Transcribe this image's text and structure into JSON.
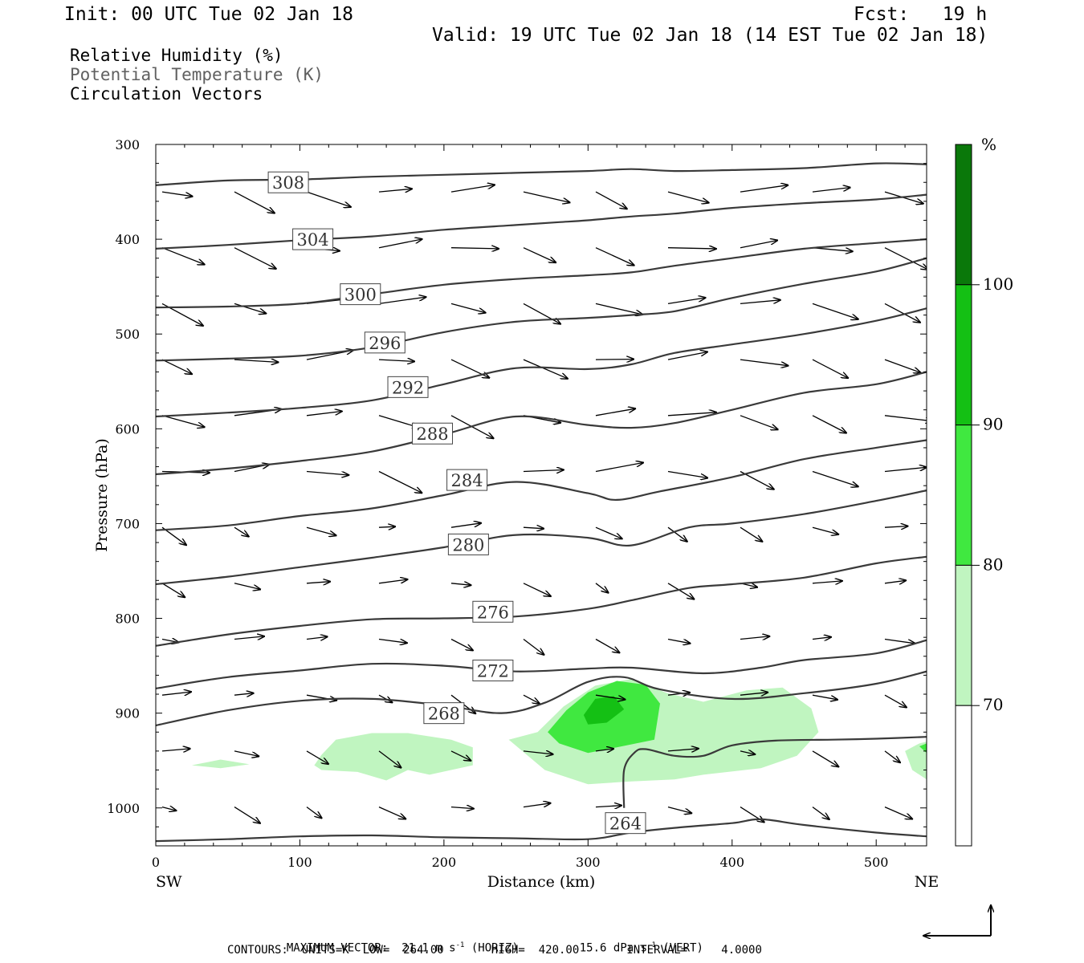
{
  "header": {
    "init": "Init: 00 UTC Tue 02 Jan 18",
    "fcst": "Fcst:   19 h",
    "valid": "Valid: 19 UTC Tue 02 Jan 18 (14 EST Tue 02 Jan 18)"
  },
  "fields": {
    "rh": "Relative Humidity (%)",
    "theta": "Potential Temperature (K)",
    "vectors": "Circulation Vectors"
  },
  "footer": {
    "max_vector_label": "MAXIMUM VECTOR:",
    "max_vector_horiz": "21.1 m s",
    "horiz_tag": "(HORIZ)",
    "max_vector_vert": "15.6 dPa s",
    "vert_tag": "(VERT)",
    "exp": "-1",
    "contours": "CONTOURS:  UNITS=K  LOW=  264.00       HIGH=  420.00       INTERVAL=     4.0000"
  },
  "colors": {
    "rh70": "#c0f5c0",
    "rh80": "#40e840",
    "rh90": "#14c014",
    "rh100": "#0a780a",
    "contour": "#3a3a3a"
  },
  "chart_data": {
    "type": "cross-section",
    "xlabel": "Distance (km)",
    "ylabel": "Pressure (hPa)",
    "xlim": [
      0,
      535
    ],
    "ylim": [
      300,
      1040
    ],
    "y_scale": "linear, inverted (pressure increasing downward)",
    "x_ticks": [
      0,
      100,
      200,
      300,
      400,
      500
    ],
    "y_ticks": [
      300,
      400,
      500,
      600,
      700,
      800,
      900,
      1000
    ],
    "endpoint_labels": {
      "left": "SW",
      "right": "NE"
    },
    "colorbar": {
      "unit": "%",
      "levels": [
        70,
        80,
        90,
        100
      ],
      "labeled_levels": [
        "70",
        "80",
        "90",
        "100"
      ]
    },
    "theta_contours": [
      {
        "label": "308",
        "label_at": [
          92,
          340
        ],
        "points": [
          [
            0,
            343
          ],
          [
            50,
            338
          ],
          [
            100,
            337
          ],
          [
            150,
            334
          ],
          [
            200,
            332
          ],
          [
            250,
            330
          ],
          [
            300,
            328
          ],
          [
            330,
            326
          ],
          [
            360,
            328
          ],
          [
            400,
            327
          ],
          [
            450,
            325
          ],
          [
            500,
            320
          ],
          [
            535,
            321
          ]
        ]
      },
      {
        "label": "304",
        "label_at": [
          109,
          400
        ],
        "points": [
          [
            0,
            410
          ],
          [
            50,
            406
          ],
          [
            100,
            401
          ],
          [
            150,
            397
          ],
          [
            200,
            390
          ],
          [
            250,
            385
          ],
          [
            280,
            382
          ],
          [
            300,
            380
          ],
          [
            330,
            376
          ],
          [
            360,
            373
          ],
          [
            400,
            367
          ],
          [
            450,
            362
          ],
          [
            500,
            358
          ],
          [
            535,
            353
          ]
        ]
      },
      {
        "label": "300",
        "label_at": [
          142,
          458
        ],
        "points": [
          [
            0,
            472
          ],
          [
            50,
            471
          ],
          [
            100,
            468
          ],
          [
            150,
            458
          ],
          [
            200,
            448
          ],
          [
            250,
            442
          ],
          [
            300,
            438
          ],
          [
            330,
            435
          ],
          [
            360,
            428
          ],
          [
            400,
            420
          ],
          [
            450,
            410
          ],
          [
            500,
            404
          ],
          [
            535,
            400
          ]
        ]
      },
      {
        "label": "296",
        "label_at": [
          159,
          509
        ],
        "points": [
          [
            0,
            528
          ],
          [
            50,
            526
          ],
          [
            100,
            523
          ],
          [
            150,
            514
          ],
          [
            200,
            498
          ],
          [
            250,
            487
          ],
          [
            300,
            483
          ],
          [
            330,
            480
          ],
          [
            360,
            476
          ],
          [
            400,
            462
          ],
          [
            450,
            447
          ],
          [
            500,
            434
          ],
          [
            535,
            420
          ]
        ]
      },
      {
        "label": "292",
        "label_at": [
          175,
          556
        ],
        "points": [
          [
            0,
            587
          ],
          [
            50,
            583
          ],
          [
            100,
            578
          ],
          [
            150,
            570
          ],
          [
            200,
            553
          ],
          [
            250,
            536
          ],
          [
            300,
            537
          ],
          [
            330,
            532
          ],
          [
            360,
            520
          ],
          [
            400,
            511
          ],
          [
            450,
            500
          ],
          [
            500,
            486
          ],
          [
            535,
            473
          ]
        ]
      },
      {
        "label": "288",
        "label_at": [
          192,
          605
        ],
        "points": [
          [
            0,
            648
          ],
          [
            50,
            642
          ],
          [
            100,
            634
          ],
          [
            150,
            624
          ],
          [
            200,
            606
          ],
          [
            250,
            587
          ],
          [
            300,
            596
          ],
          [
            330,
            599
          ],
          [
            360,
            594
          ],
          [
            400,
            580
          ],
          [
            450,
            562
          ],
          [
            500,
            553
          ],
          [
            535,
            540
          ]
        ]
      },
      {
        "label": "284",
        "label_at": [
          216,
          654
        ],
        "points": [
          [
            0,
            707
          ],
          [
            50,
            702
          ],
          [
            100,
            692
          ],
          [
            150,
            684
          ],
          [
            200,
            670
          ],
          [
            250,
            656
          ],
          [
            300,
            668
          ],
          [
            320,
            675
          ],
          [
            350,
            666
          ],
          [
            400,
            651
          ],
          [
            450,
            632
          ],
          [
            500,
            620
          ],
          [
            535,
            612
          ]
        ]
      },
      {
        "label": "280",
        "label_at": [
          217,
          722
        ],
        "points": [
          [
            0,
            764
          ],
          [
            50,
            756
          ],
          [
            100,
            746
          ],
          [
            150,
            736
          ],
          [
            200,
            725
          ],
          [
            250,
            712
          ],
          [
            300,
            715
          ],
          [
            330,
            723
          ],
          [
            370,
            704
          ],
          [
            400,
            700
          ],
          [
            450,
            690
          ],
          [
            500,
            676
          ],
          [
            535,
            665
          ]
        ]
      },
      {
        "label": "276",
        "label_at": [
          234,
          793
        ],
        "points": [
          [
            0,
            829
          ],
          [
            50,
            817
          ],
          [
            100,
            808
          ],
          [
            150,
            801
          ],
          [
            200,
            800
          ],
          [
            250,
            798
          ],
          [
            300,
            790
          ],
          [
            330,
            781
          ],
          [
            370,
            768
          ],
          [
            400,
            764
          ],
          [
            450,
            757
          ],
          [
            500,
            742
          ],
          [
            535,
            735
          ]
        ]
      },
      {
        "label": "272",
        "label_at": [
          234,
          855
        ],
        "points": [
          [
            0,
            874
          ],
          [
            50,
            862
          ],
          [
            100,
            855
          ],
          [
            150,
            848
          ],
          [
            200,
            850
          ],
          [
            250,
            856
          ],
          [
            300,
            853
          ],
          [
            330,
            852
          ],
          [
            380,
            858
          ],
          [
            420,
            852
          ],
          [
            450,
            844
          ],
          [
            500,
            837
          ],
          [
            535,
            823
          ]
        ]
      },
      {
        "label": "268",
        "label_at": [
          200,
          900
        ],
        "points": [
          [
            0,
            913
          ],
          [
            50,
            897
          ],
          [
            100,
            887
          ],
          [
            150,
            885
          ],
          [
            200,
            892
          ],
          [
            240,
            900
          ],
          [
            270,
            889
          ],
          [
            300,
            867
          ],
          [
            325,
            862
          ],
          [
            350,
            875
          ],
          [
            400,
            885
          ],
          [
            450,
            879
          ],
          [
            500,
            869
          ],
          [
            535,
            856
          ]
        ]
      },
      {
        "label": "264",
        "label_at": [
          326,
          1016
        ],
        "points": [
          [
            0,
            1035
          ],
          [
            50,
            1033
          ],
          [
            100,
            1030
          ],
          [
            150,
            1029
          ],
          [
            200,
            1031
          ],
          [
            250,
            1032
          ],
          [
            300,
            1033
          ],
          [
            330,
            1026
          ],
          [
            360,
            1021
          ],
          [
            400,
            1016
          ],
          [
            420,
            1012
          ],
          [
            450,
            1018
          ],
          [
            500,
            1026
          ],
          [
            535,
            1030
          ]
        ]
      },
      {
        "label": "",
        "label_at": null,
        "points": [
          [
            325,
            1000
          ],
          [
            325,
            960
          ],
          [
            332,
            942
          ],
          [
            340,
            938
          ],
          [
            360,
            945
          ],
          [
            380,
            945
          ],
          [
            400,
            934
          ],
          [
            430,
            929
          ],
          [
            470,
            928
          ],
          [
            500,
            927
          ],
          [
            535,
            925
          ]
        ]
      }
    ],
    "rh_regions": [
      {
        "level": 70,
        "points": [
          [
            25,
            955
          ],
          [
            45,
            949
          ],
          [
            65,
            954
          ],
          [
            45,
            958
          ]
        ]
      },
      {
        "level": 70,
        "points": [
          [
            115,
            944
          ],
          [
            125,
            928
          ],
          [
            150,
            921
          ],
          [
            175,
            921
          ],
          [
            205,
            928
          ],
          [
            220,
            936
          ],
          [
            220,
            955
          ],
          [
            190,
            965
          ],
          [
            175,
            960
          ],
          [
            160,
            971
          ],
          [
            140,
            962
          ],
          [
            115,
            960
          ],
          [
            110,
            955
          ]
        ]
      },
      {
        "level": 70,
        "points": [
          [
            245,
            928
          ],
          [
            265,
            920
          ],
          [
            283,
            893
          ],
          [
            305,
            871
          ],
          [
            330,
            864
          ],
          [
            355,
            879
          ],
          [
            380,
            888
          ],
          [
            410,
            876
          ],
          [
            435,
            873
          ],
          [
            455,
            895
          ],
          [
            460,
            920
          ],
          [
            445,
            945
          ],
          [
            420,
            958
          ],
          [
            380,
            965
          ],
          [
            360,
            970
          ],
          [
            330,
            972
          ],
          [
            300,
            975
          ],
          [
            270,
            960
          ]
        ]
      },
      {
        "level": 70,
        "points": [
          [
            520,
            940
          ],
          [
            530,
            932
          ],
          [
            535,
            930
          ],
          [
            535,
            970
          ],
          [
            525,
            960
          ]
        ]
      },
      {
        "level": 80,
        "points": [
          [
            272,
            920
          ],
          [
            285,
            897
          ],
          [
            300,
            878
          ],
          [
            320,
            866
          ],
          [
            340,
            870
          ],
          [
            350,
            890
          ],
          [
            346,
            928
          ],
          [
            320,
            936
          ],
          [
            300,
            942
          ],
          [
            280,
            932
          ]
        ]
      },
      {
        "level": 80,
        "points": [
          [
            530,
            935
          ],
          [
            535,
            932
          ],
          [
            535,
            942
          ]
        ]
      },
      {
        "level": 90,
        "points": [
          [
            297,
            902
          ],
          [
            305,
            885
          ],
          [
            318,
            882
          ],
          [
            325,
            896
          ],
          [
            313,
            910
          ],
          [
            300,
            912
          ]
        ]
      }
    ]
  }
}
